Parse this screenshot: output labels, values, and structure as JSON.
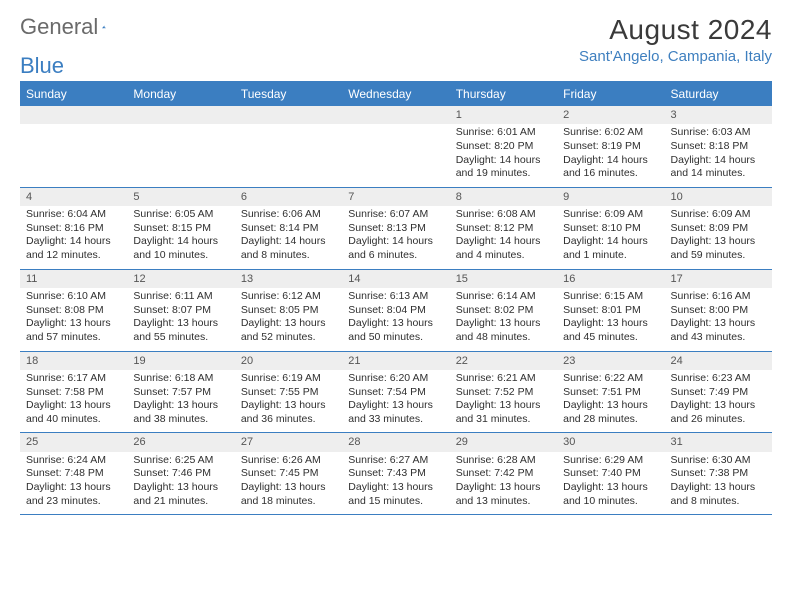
{
  "brand": {
    "part1": "General",
    "part2": "Blue"
  },
  "title": "August 2024",
  "location": "Sant'Angelo, Campania, Italy",
  "weekdays": [
    "Sunday",
    "Monday",
    "Tuesday",
    "Wednesday",
    "Thursday",
    "Friday",
    "Saturday"
  ],
  "colors": {
    "header_bg": "#3b7ec1",
    "header_text": "#ffffff",
    "daynum_bg": "#eeeeee",
    "border": "#3b7ec1",
    "brand_gray": "#6a6a6a",
    "brand_blue": "#3b7ec1"
  },
  "layout": {
    "cols": 7,
    "rows": 5
  },
  "days": [
    {
      "n": "",
      "sr": "",
      "ss": "",
      "dl": ""
    },
    {
      "n": "",
      "sr": "",
      "ss": "",
      "dl": ""
    },
    {
      "n": "",
      "sr": "",
      "ss": "",
      "dl": ""
    },
    {
      "n": "",
      "sr": "",
      "ss": "",
      "dl": ""
    },
    {
      "n": "1",
      "sr": "Sunrise: 6:01 AM",
      "ss": "Sunset: 8:20 PM",
      "dl": "Daylight: 14 hours and 19 minutes."
    },
    {
      "n": "2",
      "sr": "Sunrise: 6:02 AM",
      "ss": "Sunset: 8:19 PM",
      "dl": "Daylight: 14 hours and 16 minutes."
    },
    {
      "n": "3",
      "sr": "Sunrise: 6:03 AM",
      "ss": "Sunset: 8:18 PM",
      "dl": "Daylight: 14 hours and 14 minutes."
    },
    {
      "n": "4",
      "sr": "Sunrise: 6:04 AM",
      "ss": "Sunset: 8:16 PM",
      "dl": "Daylight: 14 hours and 12 minutes."
    },
    {
      "n": "5",
      "sr": "Sunrise: 6:05 AM",
      "ss": "Sunset: 8:15 PM",
      "dl": "Daylight: 14 hours and 10 minutes."
    },
    {
      "n": "6",
      "sr": "Sunrise: 6:06 AM",
      "ss": "Sunset: 8:14 PM",
      "dl": "Daylight: 14 hours and 8 minutes."
    },
    {
      "n": "7",
      "sr": "Sunrise: 6:07 AM",
      "ss": "Sunset: 8:13 PM",
      "dl": "Daylight: 14 hours and 6 minutes."
    },
    {
      "n": "8",
      "sr": "Sunrise: 6:08 AM",
      "ss": "Sunset: 8:12 PM",
      "dl": "Daylight: 14 hours and 4 minutes."
    },
    {
      "n": "9",
      "sr": "Sunrise: 6:09 AM",
      "ss": "Sunset: 8:10 PM",
      "dl": "Daylight: 14 hours and 1 minute."
    },
    {
      "n": "10",
      "sr": "Sunrise: 6:09 AM",
      "ss": "Sunset: 8:09 PM",
      "dl": "Daylight: 13 hours and 59 minutes."
    },
    {
      "n": "11",
      "sr": "Sunrise: 6:10 AM",
      "ss": "Sunset: 8:08 PM",
      "dl": "Daylight: 13 hours and 57 minutes."
    },
    {
      "n": "12",
      "sr": "Sunrise: 6:11 AM",
      "ss": "Sunset: 8:07 PM",
      "dl": "Daylight: 13 hours and 55 minutes."
    },
    {
      "n": "13",
      "sr": "Sunrise: 6:12 AM",
      "ss": "Sunset: 8:05 PM",
      "dl": "Daylight: 13 hours and 52 minutes."
    },
    {
      "n": "14",
      "sr": "Sunrise: 6:13 AM",
      "ss": "Sunset: 8:04 PM",
      "dl": "Daylight: 13 hours and 50 minutes."
    },
    {
      "n": "15",
      "sr": "Sunrise: 6:14 AM",
      "ss": "Sunset: 8:02 PM",
      "dl": "Daylight: 13 hours and 48 minutes."
    },
    {
      "n": "16",
      "sr": "Sunrise: 6:15 AM",
      "ss": "Sunset: 8:01 PM",
      "dl": "Daylight: 13 hours and 45 minutes."
    },
    {
      "n": "17",
      "sr": "Sunrise: 6:16 AM",
      "ss": "Sunset: 8:00 PM",
      "dl": "Daylight: 13 hours and 43 minutes."
    },
    {
      "n": "18",
      "sr": "Sunrise: 6:17 AM",
      "ss": "Sunset: 7:58 PM",
      "dl": "Daylight: 13 hours and 40 minutes."
    },
    {
      "n": "19",
      "sr": "Sunrise: 6:18 AM",
      "ss": "Sunset: 7:57 PM",
      "dl": "Daylight: 13 hours and 38 minutes."
    },
    {
      "n": "20",
      "sr": "Sunrise: 6:19 AM",
      "ss": "Sunset: 7:55 PM",
      "dl": "Daylight: 13 hours and 36 minutes."
    },
    {
      "n": "21",
      "sr": "Sunrise: 6:20 AM",
      "ss": "Sunset: 7:54 PM",
      "dl": "Daylight: 13 hours and 33 minutes."
    },
    {
      "n": "22",
      "sr": "Sunrise: 6:21 AM",
      "ss": "Sunset: 7:52 PM",
      "dl": "Daylight: 13 hours and 31 minutes."
    },
    {
      "n": "23",
      "sr": "Sunrise: 6:22 AM",
      "ss": "Sunset: 7:51 PM",
      "dl": "Daylight: 13 hours and 28 minutes."
    },
    {
      "n": "24",
      "sr": "Sunrise: 6:23 AM",
      "ss": "Sunset: 7:49 PM",
      "dl": "Daylight: 13 hours and 26 minutes."
    },
    {
      "n": "25",
      "sr": "Sunrise: 6:24 AM",
      "ss": "Sunset: 7:48 PM",
      "dl": "Daylight: 13 hours and 23 minutes."
    },
    {
      "n": "26",
      "sr": "Sunrise: 6:25 AM",
      "ss": "Sunset: 7:46 PM",
      "dl": "Daylight: 13 hours and 21 minutes."
    },
    {
      "n": "27",
      "sr": "Sunrise: 6:26 AM",
      "ss": "Sunset: 7:45 PM",
      "dl": "Daylight: 13 hours and 18 minutes."
    },
    {
      "n": "28",
      "sr": "Sunrise: 6:27 AM",
      "ss": "Sunset: 7:43 PM",
      "dl": "Daylight: 13 hours and 15 minutes."
    },
    {
      "n": "29",
      "sr": "Sunrise: 6:28 AM",
      "ss": "Sunset: 7:42 PM",
      "dl": "Daylight: 13 hours and 13 minutes."
    },
    {
      "n": "30",
      "sr": "Sunrise: 6:29 AM",
      "ss": "Sunset: 7:40 PM",
      "dl": "Daylight: 13 hours and 10 minutes."
    },
    {
      "n": "31",
      "sr": "Sunrise: 6:30 AM",
      "ss": "Sunset: 7:38 PM",
      "dl": "Daylight: 13 hours and 8 minutes."
    }
  ]
}
